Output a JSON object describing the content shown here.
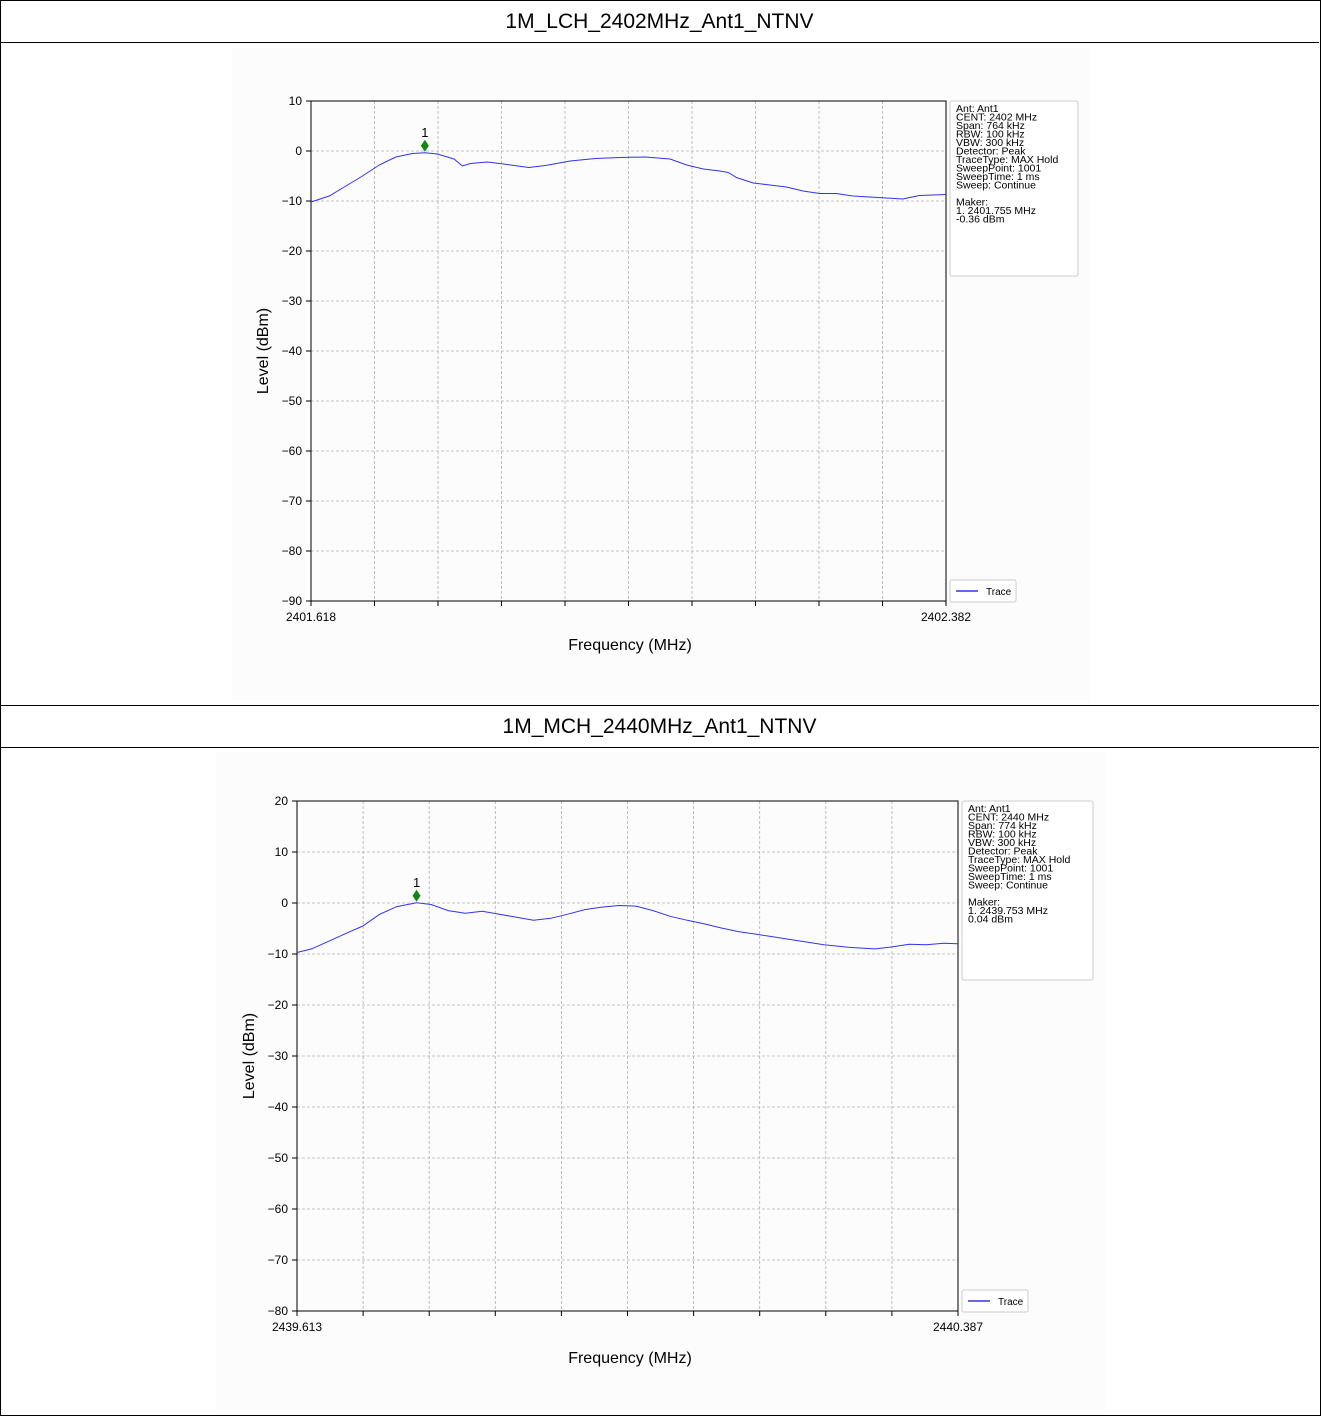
{
  "chart_data": [
    {
      "type": "line",
      "title": "1M_LCH_2402MHz_Ant1_NTNV",
      "xlabel": "Frequency (MHz)",
      "ylabel": "Level (dBm)",
      "xlim": [
        2401.618,
        2402.382
      ],
      "ylim": [
        -90,
        10
      ],
      "x_tick_labels": [
        "2401.618",
        "2402.382"
      ],
      "y_ticks": [
        10,
        0,
        -10,
        -20,
        -30,
        -40,
        -50,
        -60,
        -70,
        -80,
        -90
      ],
      "y_tick_labels": [
        "10",
        "0",
        "−10",
        "−20",
        "−30",
        "−40",
        "−50",
        "−60",
        "−70",
        "−80",
        "−90"
      ],
      "grid": true,
      "legend": "bottom-right",
      "series": [
        {
          "name": "Trace",
          "color": "#3333ee",
          "x": [
            2401.618,
            2401.64,
            2401.66,
            2401.68,
            2401.7,
            2401.72,
            2401.74,
            2401.755,
            2401.77,
            2401.79,
            2401.8,
            2401.81,
            2401.83,
            2401.85,
            2401.88,
            2401.9,
            2401.93,
            2401.96,
            2401.99,
            2402.02,
            2402.05,
            2402.07,
            2402.09,
            2402.1,
            2402.11,
            2402.12,
            2402.13,
            2402.15,
            2402.17,
            2402.19,
            2402.21,
            2402.23,
            2402.25,
            2402.27,
            2402.3,
            2402.33,
            2402.35,
            2402.382
          ],
          "y": [
            -10.2,
            -9.0,
            -7.0,
            -5.0,
            -2.8,
            -1.2,
            -0.5,
            -0.36,
            -0.6,
            -1.6,
            -3.0,
            -2.5,
            -2.2,
            -2.6,
            -3.3,
            -2.9,
            -2.0,
            -1.5,
            -1.3,
            -1.2,
            -1.6,
            -2.8,
            -3.6,
            -3.8,
            -4.0,
            -4.3,
            -5.3,
            -6.4,
            -6.8,
            -7.2,
            -8.0,
            -8.5,
            -8.5,
            -9.0,
            -9.3,
            -9.6,
            -8.9,
            -8.7
          ]
        }
      ],
      "marker": {
        "label": "1",
        "x": 2401.755,
        "y": -0.36,
        "color": "#118811"
      },
      "info_box": [
        "Ant: Ant1",
        "CENT: 2402 MHz",
        "Span: 764 kHz",
        "RBW: 100 kHz",
        "VBW: 300 kHz",
        "Detector: Peak",
        "TraceType: MAX Hold",
        "SweepPoint: 1001",
        "SweepTime: 1 ms",
        "Sweep: Continue",
        "",
        "Maker:",
        "1. 2401.755 MHz",
        "   -0.36 dBm"
      ]
    },
    {
      "type": "line",
      "title": "1M_MCH_2440MHz_Ant1_NTNV",
      "xlabel": "Frequency (MHz)",
      "ylabel": "Level (dBm)",
      "xlim": [
        2439.613,
        2440.387
      ],
      "ylim": [
        -80,
        20
      ],
      "x_tick_labels": [
        "2439.613",
        "2440.387"
      ],
      "y_ticks": [
        20,
        10,
        0,
        -10,
        -20,
        -30,
        -40,
        -50,
        -60,
        -70,
        -80
      ],
      "y_tick_labels": [
        "20",
        "10",
        "0",
        "−10",
        "−20",
        "−30",
        "−40",
        "−50",
        "−60",
        "−70",
        "−80"
      ],
      "grid": true,
      "legend": "bottom-right",
      "series": [
        {
          "name": "Trace",
          "color": "#3333ee",
          "x": [
            2439.613,
            2439.63,
            2439.65,
            2439.67,
            2439.69,
            2439.71,
            2439.73,
            2439.753,
            2439.77,
            2439.79,
            2439.81,
            2439.83,
            2439.85,
            2439.87,
            2439.89,
            2439.91,
            2439.93,
            2439.95,
            2439.97,
            2439.99,
            2440.01,
            2440.03,
            2440.05,
            2440.07,
            2440.09,
            2440.11,
            2440.13,
            2440.15,
            2440.17,
            2440.2,
            2440.23,
            2440.26,
            2440.29,
            2440.31,
            2440.33,
            2440.35,
            2440.37,
            2440.387
          ],
          "y": [
            -9.7,
            -9.0,
            -7.5,
            -6.0,
            -4.5,
            -2.2,
            -0.7,
            0.04,
            -0.3,
            -1.5,
            -2.0,
            -1.6,
            -2.2,
            -2.8,
            -3.4,
            -3.0,
            -2.2,
            -1.3,
            -0.8,
            -0.5,
            -0.6,
            -1.5,
            -2.6,
            -3.4,
            -4.1,
            -4.9,
            -5.6,
            -6.1,
            -6.6,
            -7.4,
            -8.2,
            -8.7,
            -9.0,
            -8.6,
            -8.1,
            -8.2,
            -7.9,
            -8.0
          ]
        }
      ],
      "marker": {
        "label": "1",
        "x": 2439.753,
        "y": 0.04,
        "color": "#118811"
      },
      "info_box": [
        "Ant: Ant1",
        "CENT: 2440 MHz",
        "Span: 774 kHz",
        "RBW: 100 kHz",
        "VBW: 300 kHz",
        "Detector: Peak",
        "TraceType: MAX Hold",
        "SweepPoint: 1001",
        "SweepTime: 1 ms",
        "Sweep: Continue",
        "",
        "Maker:",
        "1. 2439.753 MHz",
        "   0.04 dBm"
      ]
    }
  ]
}
